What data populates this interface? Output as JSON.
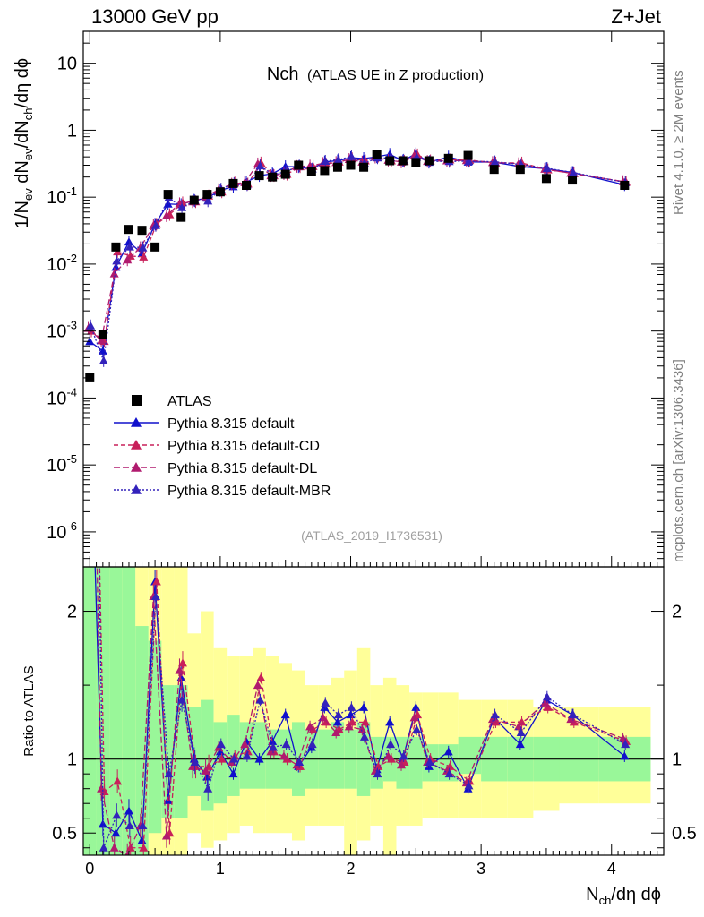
{
  "header": {
    "left": "13000 GeV pp",
    "right": "Z+Jet"
  },
  "chart_data": {
    "type": "scatter",
    "title_main": "Nch",
    "title_sub": "(ATLAS UE in Z production)",
    "analysis_id": "(ATLAS_2019_I1736531)",
    "side_rivet": "Rivet 4.1.0, ≥ 2M events",
    "side_mcplots": "mcplots.cern.ch [arXiv:1306.3436]",
    "xlabel": "N_ch/dη dϕ",
    "ylabel": "1/N_ev dN_ev/dN_ch/dη dϕ",
    "ratio_ylabel": "Ratio to ATLAS",
    "xlim": [
      -0.05,
      4.4
    ],
    "ylim_log": [
      3e-07,
      30
    ],
    "ratio_ylim": [
      0.35,
      2.3
    ],
    "x_ticks": [
      "0",
      "1",
      "2",
      "3",
      "4"
    ],
    "x_tick_values": [
      0,
      1,
      2,
      3,
      4
    ],
    "y_ticks": [
      "10^-6",
      "10^-5",
      "10^-4",
      "10^-3",
      "10^-2",
      "10^-1",
      "1",
      "10"
    ],
    "y_tick_values": [
      1e-06,
      1e-05,
      0.0001,
      0.001,
      0.01,
      0.1,
      1,
      10
    ],
    "ratio_ticks": [
      "0.5",
      "1",
      "2"
    ],
    "ratio_tick_values": [
      0.5,
      1,
      2
    ],
    "legend": [
      {
        "label": "ATLAS"
      },
      {
        "label": "Pythia 8.315 default"
      },
      {
        "label": "Pythia 8.315 default-CD"
      },
      {
        "label": "Pythia 8.315 default-DL"
      },
      {
        "label": "Pythia 8.315 default-MBR"
      }
    ],
    "colors": {
      "atlas": "#000000",
      "default": "#1010cc",
      "cd": "#c8205a",
      "dl": "#b01a6e",
      "mbr": "#3322bb",
      "band_green": "#99f799",
      "band_yellow": "#ffff99"
    },
    "atlas": {
      "x": [
        0.0,
        0.1,
        0.2,
        0.3,
        0.4,
        0.5,
        0.6,
        0.7,
        0.8,
        0.9,
        1.0,
        1.1,
        1.2,
        1.3,
        1.4,
        1.5,
        1.6,
        1.7,
        1.8,
        1.9,
        2.0,
        2.1,
        2.2,
        2.3,
        2.4,
        2.5,
        2.6,
        2.75,
        2.9,
        3.1,
        3.3,
        3.5,
        3.7,
        4.1
      ],
      "y": [
        0.0002,
        0.0009,
        0.018,
        0.033,
        0.032,
        0.018,
        0.11,
        0.05,
        0.09,
        0.11,
        0.12,
        0.16,
        0.15,
        0.21,
        0.2,
        0.22,
        0.3,
        0.24,
        0.25,
        0.28,
        0.3,
        0.28,
        0.43,
        0.35,
        0.35,
        0.33,
        0.35,
        0.38,
        0.42,
        0.26,
        0.26,
        0.19,
        0.18,
        0.15
      ]
    },
    "ratio_band_x": [
      -0.05,
      0.05,
      0.15,
      0.25,
      0.35,
      0.45,
      0.55,
      0.65,
      0.75,
      0.85,
      0.95,
      1.05,
      1.15,
      1.25,
      1.35,
      1.45,
      1.55,
      1.65,
      1.75,
      1.85,
      1.95,
      2.05,
      2.15,
      2.25,
      2.35,
      2.45,
      2.55,
      2.675,
      2.825,
      3.0,
      3.2,
      3.4,
      3.6,
      3.9,
      4.3
    ],
    "ratio_band_green_lo": [
      0.3,
      0.3,
      0.3,
      0.3,
      0.3,
      0.5,
      0.6,
      0.6,
      0.75,
      0.65,
      0.7,
      0.75,
      0.8,
      0.8,
      0.8,
      0.8,
      0.75,
      0.8,
      0.8,
      0.8,
      0.8,
      0.75,
      0.8,
      0.85,
      0.8,
      0.8,
      0.85,
      0.85,
      0.9,
      0.85,
      0.85,
      0.85,
      0.85,
      0.85
    ],
    "ratio_band_green_hi": [
      2.3,
      2.3,
      2.3,
      2.3,
      1.9,
      1.8,
      1.5,
      1.5,
      1.35,
      1.4,
      1.25,
      1.3,
      1.25,
      1.25,
      1.2,
      1.2,
      1.25,
      1.2,
      1.2,
      1.25,
      1.2,
      1.25,
      1.15,
      1.15,
      1.15,
      1.15,
      1.1,
      1.1,
      1.15,
      1.15,
      1.15,
      1.15,
      1.15,
      1.15
    ],
    "ratio_band_yellow_lo": [
      0.3,
      0.3,
      0.3,
      0.3,
      0.3,
      0.3,
      0.3,
      0.3,
      0.5,
      0.4,
      0.45,
      0.5,
      0.55,
      0.5,
      0.5,
      0.5,
      0.45,
      0.55,
      0.55,
      0.55,
      0.3,
      0.45,
      0.55,
      0.3,
      0.55,
      0.55,
      0.6,
      0.6,
      0.6,
      0.6,
      0.6,
      0.65,
      0.7,
      0.7
    ],
    "ratio_band_yellow_hi": [
      2.3,
      2.3,
      2.3,
      2.3,
      2.3,
      2.3,
      2.3,
      2.3,
      1.85,
      2.0,
      1.75,
      1.7,
      1.7,
      1.75,
      1.7,
      1.65,
      1.6,
      1.5,
      1.5,
      1.55,
      1.6,
      1.75,
      1.5,
      1.55,
      1.5,
      1.45,
      1.45,
      1.45,
      1.4,
      1.4,
      1.4,
      1.35,
      1.35,
      1.35
    ],
    "series": [
      {
        "name": "Pythia 8.315 default",
        "key": "default",
        "dash": "",
        "x": [
          0.0,
          0.1,
          0.2,
          0.3,
          0.4,
          0.5,
          0.6,
          0.7,
          0.8,
          0.9,
          1.0,
          1.1,
          1.2,
          1.3,
          1.4,
          1.5,
          1.6,
          1.7,
          1.8,
          1.9,
          2.0,
          2.1,
          2.2,
          2.3,
          2.4,
          2.5,
          2.6,
          2.75,
          2.9,
          3.1,
          3.3,
          3.5,
          3.7,
          4.1
        ],
        "ratio": [
          3.5,
          0.56,
          0.5,
          0.65,
          0.45,
          2.2,
          0.72,
          1.55,
          1.0,
          0.88,
          1.05,
          0.9,
          1.12,
          1.0,
          1.12,
          1.3,
          0.95,
          1.08,
          1.35,
          1.25,
          1.3,
          1.35,
          0.93,
          1.25,
          1.0,
          1.35,
          0.95,
          1.05,
          0.8,
          1.28,
          1.1,
          1.4,
          1.3,
          1.02
        ]
      },
      {
        "name": "Pythia 8.315 default-CD",
        "key": "cd",
        "dash": "5,3",
        "x": [
          0.0,
          0.1,
          0.2,
          0.3,
          0.4,
          0.5,
          0.6,
          0.7,
          0.8,
          0.9,
          1.0,
          1.1,
          1.2,
          1.3,
          1.4,
          1.5,
          1.6,
          1.7,
          1.8,
          1.9,
          2.0,
          2.1,
          2.2,
          2.3,
          2.4,
          2.5,
          2.6,
          2.75,
          2.9,
          3.1,
          3.3,
          3.5,
          3.7,
          4.1
        ],
        "ratio": [
          5.0,
          0.78,
          0.85,
          0.4,
          0.4,
          2.2,
          0.5,
          1.65,
          0.95,
          0.95,
          1.0,
          1.02,
          1.05,
          1.55,
          1.05,
          1.0,
          0.95,
          1.2,
          1.25,
          1.2,
          1.25,
          1.25,
          0.95,
          1.0,
          0.98,
          1.3,
          1.0,
          0.95,
          0.85,
          1.25,
          1.25,
          1.35,
          1.25,
          1.12
        ]
      },
      {
        "name": "Pythia 8.315 default-DL",
        "key": "dl",
        "dash": "7,3",
        "x": [
          0.0,
          0.1,
          0.2,
          0.3,
          0.4,
          0.5,
          0.6,
          0.7,
          0.8,
          0.9,
          1.0,
          1.1,
          1.2,
          1.3,
          1.4,
          1.5,
          1.6,
          1.7,
          1.8,
          1.9,
          2.0,
          2.1,
          2.2,
          2.3,
          2.4,
          2.5,
          2.6,
          2.75,
          2.9,
          3.1,
          3.3,
          3.5,
          3.7,
          4.1
        ],
        "ratio": [
          5.5,
          0.8,
          0.4,
          0.35,
          0.55,
          2.1,
          0.48,
          1.6,
          0.95,
          0.92,
          1.08,
          0.98,
          1.1,
          1.5,
          1.05,
          1.02,
          0.96,
          1.22,
          1.28,
          1.18,
          1.22,
          1.2,
          0.92,
          1.02,
          0.96,
          1.28,
          0.98,
          0.92,
          0.84,
          1.27,
          1.22,
          1.38,
          1.27,
          1.14
        ]
      },
      {
        "name": "Pythia 8.315 default-MBR",
        "key": "mbr",
        "dash": "2,2",
        "x": [
          0.0,
          0.1,
          0.2,
          0.3,
          0.4,
          0.5,
          0.6,
          0.7,
          0.8,
          0.9,
          1.0,
          1.1,
          1.2,
          1.3,
          1.4,
          1.5,
          1.6,
          1.7,
          1.8,
          1.9,
          2.0,
          2.1,
          2.2,
          2.3,
          2.4,
          2.5,
          2.6,
          2.75,
          2.9,
          3.1,
          3.3,
          3.5,
          3.7,
          4.1
        ],
        "ratio": [
          6.0,
          0.4,
          0.62,
          0.55,
          0.55,
          2.1,
          0.9,
          1.4,
          0.98,
          0.8,
          1.1,
          1.0,
          1.02,
          1.4,
          1.08,
          1.1,
          0.98,
          1.1,
          1.38,
          1.3,
          1.35,
          1.15,
          0.9,
          1.1,
          1.02,
          1.2,
          0.98,
          0.9,
          0.82,
          1.3,
          1.18,
          1.42,
          1.3,
          1.1
        ]
      }
    ]
  }
}
